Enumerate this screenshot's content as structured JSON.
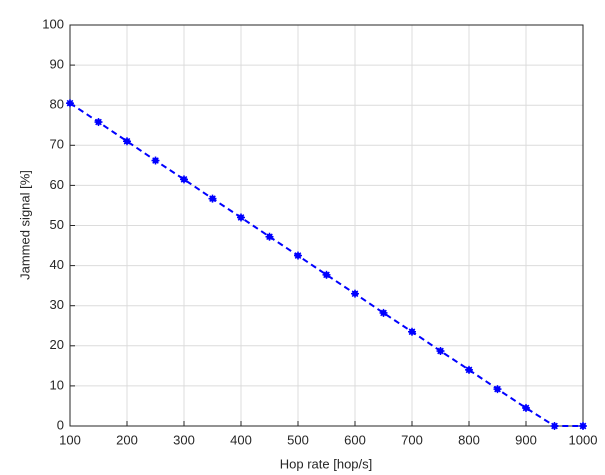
{
  "chart_data": {
    "type": "line",
    "xlabel": "Hop rate [hop/s]",
    "ylabel": "Jammed signal [%]",
    "x": [
      100,
      150,
      200,
      250,
      300,
      350,
      400,
      450,
      500,
      550,
      600,
      650,
      700,
      750,
      800,
      850,
      900,
      950,
      1000
    ],
    "series": [
      {
        "color": "#0000ff",
        "values": [
          80.5,
          75.8,
          71,
          66.2,
          61.5,
          56.7,
          52,
          47.2,
          42.5,
          37.7,
          33,
          28.2,
          23.5,
          18.7,
          14,
          9.2,
          4.5,
          0,
          0
        ]
      }
    ],
    "xlim": [
      100,
      1000
    ],
    "xticks": [
      100,
      200,
      300,
      400,
      500,
      600,
      700,
      800,
      900,
      1000
    ],
    "ylim": [
      0,
      100
    ],
    "yticks": [
      0,
      10,
      20,
      30,
      40,
      50,
      60,
      70,
      80,
      90,
      100
    ],
    "grid": true
  }
}
